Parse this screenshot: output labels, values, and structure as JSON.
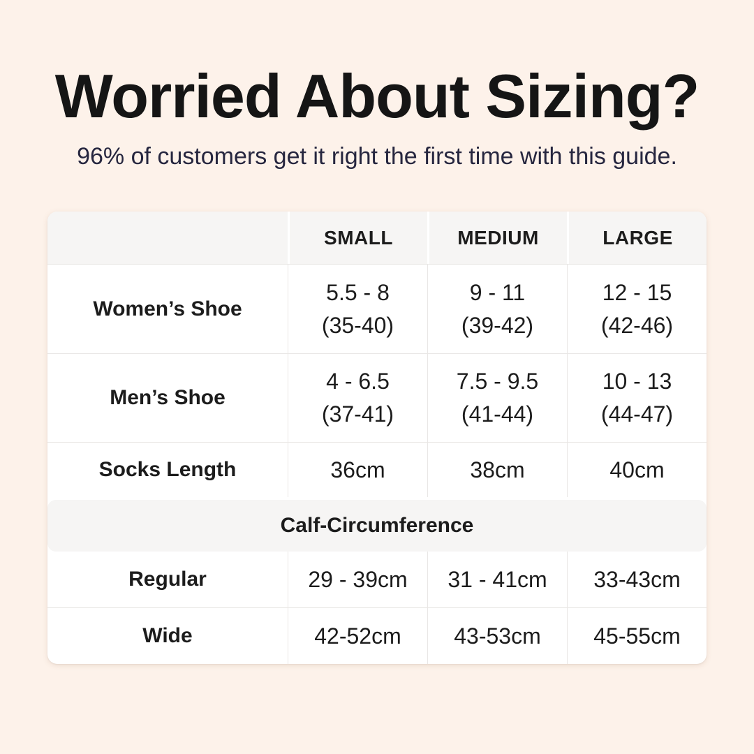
{
  "theme": {
    "page-bg": "#fdf2ea",
    "title-color": "#151515",
    "subtitle-color": "#26263f",
    "card-bg": "#ffffff",
    "head-bg": "#f6f5f4",
    "line-color": "#e9e7e5",
    "text-color": "#1c1c1c"
  },
  "header": {
    "title": "Worried About Sizing?",
    "subtitle": "96% of customers get it right the first time with this guide."
  },
  "table": {
    "columns": [
      "",
      "SMALL",
      "MEDIUM",
      "LARGE"
    ],
    "rows": [
      {
        "label": "Women’s Shoe",
        "cells": [
          {
            "line1": "5.5 - 8",
            "line2": "(35-40)"
          },
          {
            "line1": "9 - 11",
            "line2": "(39-42)"
          },
          {
            "line1": "12 - 15",
            "line2": "(42-46)"
          }
        ]
      },
      {
        "label": "Men’s Shoe",
        "cells": [
          {
            "line1": "4 - 6.5",
            "line2": "(37-41)"
          },
          {
            "line1": "7.5 - 9.5",
            "line2": "(41-44)"
          },
          {
            "line1": "10 - 13",
            "line2": "(44-47)"
          }
        ]
      },
      {
        "label": "Socks Length",
        "cells": [
          {
            "line1": "36cm"
          },
          {
            "line1": "38cm"
          },
          {
            "line1": "40cm"
          }
        ]
      }
    ],
    "section_header": "Calf-Circumference",
    "calf_rows": [
      {
        "label": "Regular",
        "cells": [
          {
            "line1": "29 - 39cm"
          },
          {
            "line1": "31 - 41cm"
          },
          {
            "line1": "33-43cm"
          }
        ]
      },
      {
        "label": "Wide",
        "cells": [
          {
            "line1": "42-52cm"
          },
          {
            "line1": "43-53cm"
          },
          {
            "line1": "45-55cm"
          }
        ]
      }
    ]
  },
  "chart_data": {
    "type": "table",
    "title": "Worried About Sizing?",
    "subtitle": "96% of customers get it right the first time with this guide.",
    "columns": [
      "",
      "SMALL",
      "MEDIUM",
      "LARGE"
    ],
    "rows": [
      [
        "Women’s Shoe",
        "5.5 - 8 (35-40)",
        "9 - 11 (39-42)",
        "12 - 15 (42-46)"
      ],
      [
        "Men’s Shoe",
        "4 - 6.5 (37-41)",
        "7.5 - 9.5 (41-44)",
        "10 - 13 (44-47)"
      ],
      [
        "Socks Length",
        "36cm",
        "38cm",
        "40cm"
      ],
      [
        "Calf-Circumference",
        "",
        "",
        ""
      ],
      [
        "Regular",
        "29 - 39cm",
        "31 - 41cm",
        "33-43cm"
      ],
      [
        "Wide",
        "42-52cm",
        "43-53cm",
        "45-55cm"
      ]
    ],
    "layout": {
      "section_row_index": 3,
      "grid": "light horizontal and vertical dividers",
      "header_style": "gray band cells"
    }
  }
}
